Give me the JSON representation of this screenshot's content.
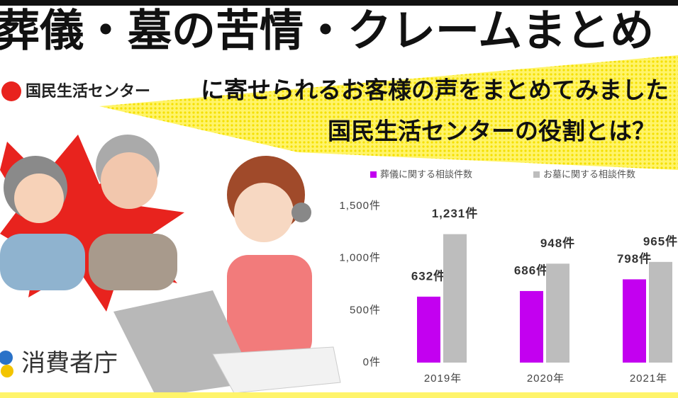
{
  "banner": {
    "title": "葬儀・墓の苦情・クレームまとめ",
    "logo": "国民生活センター",
    "subtitle": "に寄せられるお客様の声をまとめてみました",
    "question": "国民生活センターの役割とは？",
    "agency": "消費者庁"
  },
  "chart_data": {
    "type": "bar",
    "categories": [
      "2019年",
      "2020年",
      "2021年"
    ],
    "series": [
      {
        "name": "葬儀に関する相談件数",
        "color": "#c300f0",
        "values": [
          632,
          686,
          798
        ],
        "value_labels": [
          "632件",
          "686件",
          "798件"
        ]
      },
      {
        "name": "お墓に関する相談件数",
        "color": "#bdbdbd",
        "values": [
          1231,
          948,
          965
        ],
        "value_labels": [
          "1,231件",
          "948件",
          "965件"
        ]
      }
    ],
    "ylim": [
      0,
      1500
    ],
    "yticks": [
      {
        "value": 0,
        "label": "0件"
      },
      {
        "value": 500,
        "label": "500件"
      },
      {
        "value": 1000,
        "label": "1,000件"
      },
      {
        "value": 1500,
        "label": "1,500件"
      }
    ],
    "grid": false
  }
}
